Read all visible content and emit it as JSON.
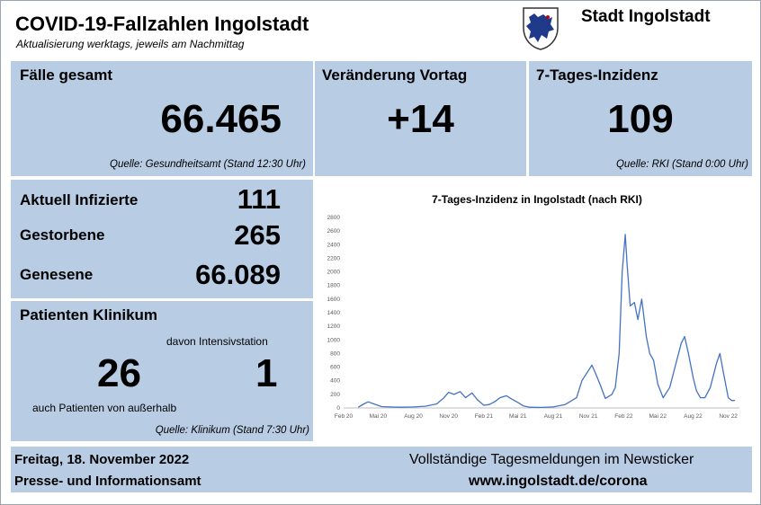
{
  "header": {
    "title": "COVID-19-Fallzahlen Ingolstadt",
    "subtitle": "Aktualisierung werktags, jeweils am Nachmittag",
    "city": "Stadt Ingolstadt",
    "logo_icon": "panther-coat-of-arms-icon"
  },
  "colors": {
    "panel": "#b8cce4",
    "line": "#4472c4",
    "logo_blue": "#1f3a8a"
  },
  "cases": {
    "label": "Fälle gesamt",
    "value": "66.465",
    "source": "Quelle: Gesundheitsamt (Stand 12:30 Uhr)"
  },
  "change": {
    "label": "Veränderung Vortag",
    "value": "+14"
  },
  "incidence": {
    "label": "7-Tages-Inzidenz",
    "value": "109",
    "source": "Quelle: RKI (Stand 0:00 Uhr)"
  },
  "stats": {
    "infected_label": "Aktuell Infizierte",
    "infected_value": "111",
    "deaths_label": "Gestorbene",
    "deaths_value": "265",
    "recovered_label": "Genesene",
    "recovered_value": "66.089"
  },
  "hospital": {
    "label": "Patienten Klinikum",
    "icu_label": "davon Intensivstation",
    "patients": "26",
    "icu": "1",
    "note": "auch Patienten von außerhalb",
    "source": "Quelle: Klinikum (Stand 7:30 Uhr)"
  },
  "footer": {
    "date": "Freitag, 18. November 2022",
    "office": "Presse- und Informationsamt",
    "newsticker": "Vollständige Tagesmeldungen im Newsticker",
    "url": "www.ingolstadt.de/corona"
  },
  "chart_data": {
    "type": "line",
    "title": "7-Tages-Inzidenz in Ingolstadt (nach RKI)",
    "xlabel": "",
    "ylabel": "",
    "ylim": [
      0,
      2800
    ],
    "yticks": [
      0,
      200,
      400,
      600,
      800,
      1000,
      1200,
      1400,
      1600,
      1800,
      2000,
      2200,
      2400,
      2600,
      2800
    ],
    "xlim": [
      "2020-02-01",
      "2022-11-30"
    ],
    "xticks": [
      {
        "date": "2020-02-01",
        "label": "Feb 20"
      },
      {
        "date": "2020-05-01",
        "label": "Mai 20"
      },
      {
        "date": "2020-08-01",
        "label": "Aug 20"
      },
      {
        "date": "2020-11-01",
        "label": "Nov 20"
      },
      {
        "date": "2021-02-01",
        "label": "Feb 21"
      },
      {
        "date": "2021-05-01",
        "label": "Mai 21"
      },
      {
        "date": "2021-08-01",
        "label": "Aug 21"
      },
      {
        "date": "2021-11-01",
        "label": "Nov 21"
      },
      {
        "date": "2022-02-01",
        "label": "Feb 22"
      },
      {
        "date": "2022-05-01",
        "label": "Mai 22"
      },
      {
        "date": "2022-08-01",
        "label": "Aug 22"
      },
      {
        "date": "2022-11-01",
        "label": "Nov 22"
      }
    ],
    "grid": false,
    "legend": "none",
    "series": [
      {
        "x": [
          "2020-03-10",
          "2020-03-25",
          "2020-04-05",
          "2020-04-20",
          "2020-05-10",
          "2020-06-01",
          "2020-07-01",
          "2020-08-01",
          "2020-09-01",
          "2020-10-01",
          "2020-10-20",
          "2020-11-01",
          "2020-11-15",
          "2020-12-01",
          "2020-12-15",
          "2021-01-01",
          "2021-01-15",
          "2021-02-01",
          "2021-02-15",
          "2021-03-01",
          "2021-03-15",
          "2021-04-01",
          "2021-04-15",
          "2021-05-01",
          "2021-05-15",
          "2021-06-01",
          "2021-07-01",
          "2021-08-01",
          "2021-09-01",
          "2021-10-01",
          "2021-10-15",
          "2021-11-01",
          "2021-11-10",
          "2021-11-20",
          "2021-12-01",
          "2021-12-15",
          "2022-01-01",
          "2022-01-10",
          "2022-01-20",
          "2022-01-28",
          "2022-02-05",
          "2022-02-10",
          "2022-02-18",
          "2022-03-01",
          "2022-03-10",
          "2022-03-20",
          "2022-04-01",
          "2022-04-10",
          "2022-04-20",
          "2022-05-01",
          "2022-05-15",
          "2022-06-01",
          "2022-06-15",
          "2022-07-01",
          "2022-07-10",
          "2022-07-20",
          "2022-08-01",
          "2022-08-10",
          "2022-08-20",
          "2022-09-01",
          "2022-09-15",
          "2022-10-01",
          "2022-10-10",
          "2022-10-20",
          "2022-11-01",
          "2022-11-10",
          "2022-11-18"
        ],
        "y": [
          10,
          60,
          90,
          60,
          20,
          15,
          10,
          15,
          25,
          60,
          150,
          230,
          200,
          240,
          150,
          220,
          120,
          40,
          50,
          90,
          150,
          180,
          130,
          80,
          30,
          10,
          8,
          15,
          50,
          150,
          400,
          550,
          630,
          500,
          350,
          140,
          200,
          300,
          800,
          2000,
          2550,
          2100,
          1500,
          1550,
          1300,
          1600,
          1050,
          800,
          700,
          350,
          150,
          300,
          600,
          950,
          1050,
          800,
          450,
          250,
          150,
          150,
          300,
          650,
          800,
          500,
          150,
          110,
          109
        ]
      }
    ]
  }
}
